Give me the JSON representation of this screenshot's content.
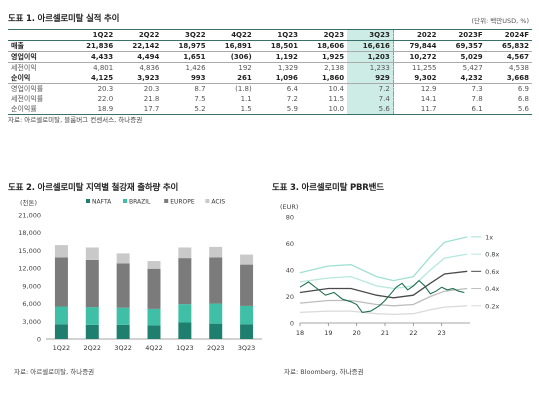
{
  "fig1": {
    "title": "도표 1. 아르셀로미탈 실적 추이",
    "unit": "(단위: 백만USD, %)",
    "columns": [
      "1Q22",
      "2Q22",
      "3Q22",
      "4Q22",
      "1Q23",
      "2Q23",
      "3Q23",
      "2022",
      "2023F",
      "2024F"
    ],
    "rows": [
      {
        "label": "매출",
        "values": [
          "21,836",
          "22,142",
          "18,975",
          "16,891",
          "18,501",
          "18,606",
          "16,616",
          "79,844",
          "69,357",
          "65,832"
        ],
        "style": "bold"
      },
      {
        "label": "영업이익",
        "values": [
          "4,433",
          "4,494",
          "1,651",
          "(306)",
          "1,192",
          "1,925",
          "1,203",
          "10,272",
          "5,029",
          "4,567"
        ],
        "style": "bold"
      },
      {
        "label": "세전이익",
        "values": [
          "4,801",
          "4,836",
          "1,426",
          "192",
          "1,329",
          "2,138",
          "1,233",
          "11,255",
          "5,427",
          "4,538"
        ],
        "style": "sub"
      },
      {
        "label": "순이익",
        "values": [
          "4,125",
          "3,923",
          "993",
          "261",
          "1,096",
          "1,860",
          "929",
          "9,302",
          "4,232",
          "3,668"
        ],
        "style": "bold"
      },
      {
        "label": "영업이익률",
        "values": [
          "20.3",
          "20.3",
          "8.7",
          "(1.8)",
          "6.4",
          "10.4",
          "7.2",
          "12.9",
          "7.3",
          "6.9"
        ],
        "style": "sub"
      },
      {
        "label": "세전이익률",
        "values": [
          "22.0",
          "21.8",
          "7.5",
          "1.1",
          "7.2",
          "11.5",
          "7.4",
          "14.1",
          "7.8",
          "6.8"
        ],
        "style": "sub"
      },
      {
        "label": "순이익률",
        "values": [
          "18.9",
          "17.7",
          "5.2",
          "1.5",
          "5.9",
          "10.0",
          "5.6",
          "11.7",
          "6.1",
          "5.6"
        ],
        "style": "sub"
      }
    ],
    "source": "자료: 아르셀로미탈, 블룸버그 컨센서스, 하나증권"
  },
  "fig2": {
    "title": "도표 2. 아르셀로미탈 지역별 철강재 출하량 추이",
    "unit": "(천톤)",
    "source": "자료: 아르셀로미탈, 하나증권",
    "chart_data": {
      "type": "bar",
      "stacked": true,
      "categories": [
        "1Q22",
        "2Q22",
        "3Q22",
        "4Q22",
        "1Q23",
        "2Q23",
        "3Q23"
      ],
      "series": [
        {
          "name": "NAFTA",
          "color": "#1f7f6e",
          "values": [
            2500,
            2400,
            2400,
            2300,
            2800,
            2600,
            2500
          ]
        },
        {
          "name": "BRAZIL",
          "color": "#3fbfa6",
          "values": [
            3000,
            3000,
            2900,
            2800,
            3100,
            3400,
            3100
          ]
        },
        {
          "name": "EUROPE",
          "color": "#7b7b7b",
          "values": [
            8300,
            8000,
            7500,
            6800,
            7800,
            7800,
            7000
          ]
        },
        {
          "name": "ACIS",
          "color": "#c9c9c9",
          "values": [
            2100,
            2100,
            1700,
            1300,
            1800,
            1800,
            1700
          ]
        }
      ],
      "ylim": [
        0,
        21000
      ],
      "yticks": [
        "0",
        "3,000",
        "6,000",
        "9,000",
        "12,000",
        "15,000",
        "18,000",
        "21,000"
      ],
      "legend": "top"
    }
  },
  "fig3": {
    "title": "도표 3. 아르셀로미탈 PBR밴드",
    "unit": "(EUR)",
    "source": "자료: Bloomberg, 하나증권",
    "chart_data": {
      "type": "line",
      "xticks": [
        "18",
        "19",
        "20",
        "21",
        "22",
        "23"
      ],
      "ylim": [
        0,
        80
      ],
      "yticks": [
        "0",
        "20",
        "40",
        "60",
        "80"
      ],
      "bands": [
        {
          "name": "1x",
          "color": "#9fe0d3",
          "points": [
            [
              2018,
              38
            ],
            [
              2019,
              43
            ],
            [
              2019.8,
              44
            ],
            [
              2020.7,
              35
            ],
            [
              2021.3,
              32
            ],
            [
              2022,
              35
            ],
            [
              2022.6,
              50
            ],
            [
              2023.1,
              61
            ],
            [
              2023.9,
              65
            ]
          ]
        },
        {
          "name": "0.8x",
          "color": "#b7e8de",
          "points": [
            [
              2018,
              31
            ],
            [
              2019,
              34
            ],
            [
              2019.8,
              35
            ],
            [
              2020.7,
              28
            ],
            [
              2021.3,
              26
            ],
            [
              2022,
              28
            ],
            [
              2022.6,
              40
            ],
            [
              2023.1,
              49
            ],
            [
              2023.9,
              52
            ]
          ]
        },
        {
          "name": "0.6x",
          "color": "#4a4a4a",
          "points": [
            [
              2018,
              23
            ],
            [
              2019,
              26
            ],
            [
              2019.8,
              26
            ],
            [
              2020.7,
              21
            ],
            [
              2021.3,
              19
            ],
            [
              2022,
              21
            ],
            [
              2022.6,
              30
            ],
            [
              2023.1,
              37
            ],
            [
              2023.9,
              39
            ]
          ]
        },
        {
          "name": "0.4x",
          "color": "#bdbdbd",
          "points": [
            [
              2018,
              15
            ],
            [
              2019,
              17
            ],
            [
              2019.8,
              17
            ],
            [
              2020.7,
              14
            ],
            [
              2021.3,
              13
            ],
            [
              2022,
              14
            ],
            [
              2022.6,
              20
            ],
            [
              2023.1,
              24
            ],
            [
              2023.9,
              26
            ]
          ]
        },
        {
          "name": "0.2x",
          "color": "#dadada",
          "points": [
            [
              2018,
              8
            ],
            [
              2019,
              9
            ],
            [
              2019.8,
              9
            ],
            [
              2020.7,
              7
            ],
            [
              2021.3,
              6.5
            ],
            [
              2022,
              7
            ],
            [
              2022.6,
              10
            ],
            [
              2023.1,
              12
            ],
            [
              2023.9,
              13
            ]
          ]
        }
      ],
      "price": {
        "color": "#1f6e4e",
        "points": [
          [
            2018,
            27
          ],
          [
            2018.3,
            31
          ],
          [
            2018.6,
            26
          ],
          [
            2018.9,
            21
          ],
          [
            2019.2,
            23
          ],
          [
            2019.5,
            18
          ],
          [
            2019.8,
            16
          ],
          [
            2020.0,
            14
          ],
          [
            2020.2,
            8
          ],
          [
            2020.5,
            9
          ],
          [
            2020.8,
            13
          ],
          [
            2021.0,
            17
          ],
          [
            2021.2,
            22
          ],
          [
            2021.4,
            27
          ],
          [
            2021.6,
            30
          ],
          [
            2021.8,
            25
          ],
          [
            2022.0,
            28
          ],
          [
            2022.2,
            32
          ],
          [
            2022.4,
            28
          ],
          [
            2022.6,
            22
          ],
          [
            2022.8,
            24
          ],
          [
            2023.0,
            27
          ],
          [
            2023.2,
            25
          ],
          [
            2023.4,
            26
          ],
          [
            2023.6,
            24
          ],
          [
            2023.8,
            23
          ]
        ]
      }
    }
  }
}
